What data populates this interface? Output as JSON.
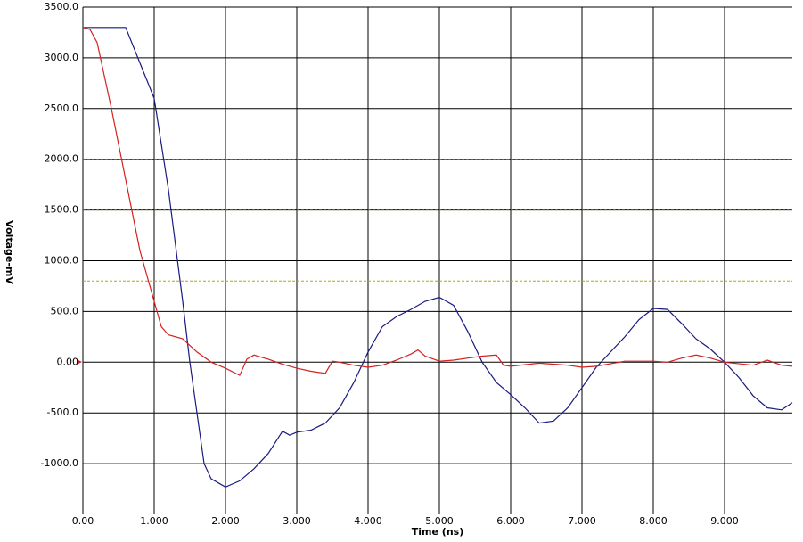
{
  "chart_data": {
    "type": "line",
    "x_label": "Time (ns)",
    "y_label": "Voltage-mV",
    "xlim": [
      0,
      9.95
    ],
    "ylim": [
      -1500,
      3500
    ],
    "xticks": [
      {
        "value": 0,
        "label": "0.00"
      },
      {
        "value": 1,
        "label": "1.000"
      },
      {
        "value": 2,
        "label": "2.000"
      },
      {
        "value": 3,
        "label": "3.000"
      },
      {
        "value": 4,
        "label": "4.000"
      },
      {
        "value": 5,
        "label": "5.000"
      },
      {
        "value": 6,
        "label": "6.000"
      },
      {
        "value": 7,
        "label": "7.000"
      },
      {
        "value": 8,
        "label": "8.000"
      },
      {
        "value": 9,
        "label": "9.000"
      }
    ],
    "yticks": [
      {
        "value": -1000,
        "label": "-1000.0"
      },
      {
        "value": -500,
        "label": "-500.0"
      },
      {
        "value": 0,
        "label": "0.00"
      },
      {
        "value": 500,
        "label": "500.0"
      },
      {
        "value": 1000,
        "label": "1000.0"
      },
      {
        "value": 1500,
        "label": "1500.0"
      },
      {
        "value": 2000,
        "label": "2000.0"
      },
      {
        "value": 2500,
        "label": "2500.0"
      },
      {
        "value": 3000,
        "label": "3000.0"
      },
      {
        "value": 3500,
        "label": "3500.0"
      }
    ],
    "grid": true,
    "grid_color": "#000000",
    "reference_lines": [
      {
        "value": 2000,
        "color": "#6b6b00"
      },
      {
        "value": 1500,
        "color": "#6b6b00"
      },
      {
        "value": 800,
        "color": "#b8a800"
      }
    ],
    "series": [
      {
        "color": "#1a1a80",
        "x": [
          0,
          0.6,
          0.8,
          1.0,
          1.2,
          1.4,
          1.5,
          1.6,
          1.7,
          1.8,
          2.0,
          2.2,
          2.4,
          2.6,
          2.8,
          2.9,
          3.0,
          3.2,
          3.4,
          3.6,
          3.8,
          4.0,
          4.2,
          4.4,
          4.6,
          4.8,
          5.0,
          5.2,
          5.4,
          5.6,
          5.8,
          6.0,
          6.2,
          6.4,
          6.6,
          6.8,
          7.0,
          7.2,
          7.4,
          7.6,
          7.8,
          8.0,
          8.2,
          8.4,
          8.6,
          8.8,
          9.0,
          9.2,
          9.4,
          9.6,
          9.8,
          9.95
        ],
        "values": [
          3300,
          3300,
          2950,
          2600,
          1700,
          600,
          0,
          -500,
          -1000,
          -1150,
          -1230,
          -1170,
          -1050,
          -900,
          -680,
          -720,
          -690,
          -670,
          -600,
          -450,
          -200,
          100,
          350,
          450,
          520,
          600,
          640,
          560,
          300,
          0,
          -200,
          -320,
          -450,
          -600,
          -580,
          -450,
          -250,
          -50,
          100,
          250,
          420,
          530,
          520,
          380,
          230,
          130,
          0,
          -150,
          -330,
          -450,
          -470,
          -400
        ]
      },
      {
        "color": "#d42020",
        "x": [
          0,
          0.1,
          0.2,
          0.4,
          0.6,
          0.8,
          1.0,
          1.1,
          1.2,
          1.4,
          1.6,
          1.8,
          2.0,
          2.2,
          2.3,
          2.4,
          2.6,
          2.8,
          3.0,
          3.2,
          3.4,
          3.5,
          3.6,
          3.8,
          4.0,
          4.2,
          4.4,
          4.6,
          4.7,
          4.8,
          5.0,
          5.2,
          5.4,
          5.6,
          5.8,
          5.9,
          6.0,
          6.4,
          6.8,
          7.0,
          7.2,
          7.6,
          8.0,
          8.2,
          8.4,
          8.6,
          8.8,
          9.0,
          9.4,
          9.6,
          9.8,
          9.95
        ],
        "values": [
          3300,
          3280,
          3150,
          2500,
          1800,
          1100,
          600,
          350,
          270,
          230,
          100,
          0,
          -60,
          -130,
          30,
          70,
          30,
          -20,
          -60,
          -90,
          -110,
          10,
          0,
          -30,
          -50,
          -30,
          20,
          80,
          120,
          60,
          10,
          20,
          40,
          60,
          70,
          -30,
          -40,
          -10,
          -30,
          -50,
          -40,
          10,
          10,
          0,
          40,
          70,
          40,
          0,
          -30,
          20,
          -30,
          -40
        ]
      }
    ]
  }
}
